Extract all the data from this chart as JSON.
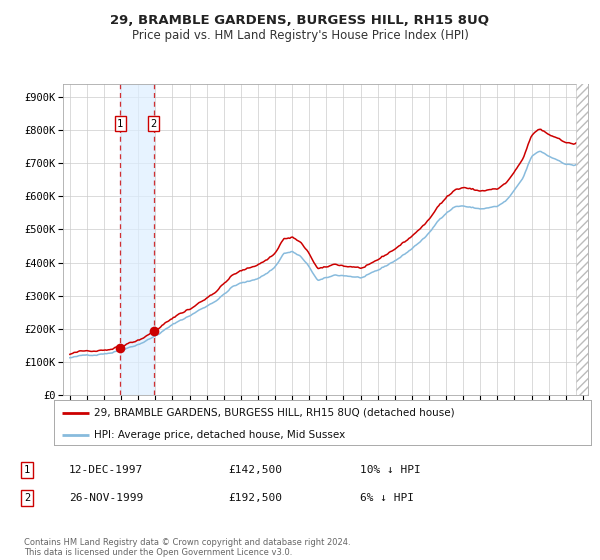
{
  "title": "29, BRAMBLE GARDENS, BURGESS HILL, RH15 8UQ",
  "subtitle": "Price paid vs. HM Land Registry's House Price Index (HPI)",
  "legend_red": "29, BRAMBLE GARDENS, BURGESS HILL, RH15 8UQ (detached house)",
  "legend_blue": "HPI: Average price, detached house, Mid Sussex",
  "transaction1_date": "12-DEC-1997",
  "transaction1_price": "£142,500",
  "transaction1_pct": "10% ↓ HPI",
  "transaction2_date": "26-NOV-1999",
  "transaction2_price": "£192,500",
  "transaction2_pct": "6% ↓ HPI",
  "footnote": "Contains HM Land Registry data © Crown copyright and database right 2024.\nThis data is licensed under the Open Government Licence v3.0.",
  "ytick_labels": [
    "£0",
    "£100K",
    "£200K",
    "£300K",
    "£400K",
    "£500K",
    "£600K",
    "£700K",
    "£800K",
    "£900K"
  ],
  "yticks": [
    0,
    100000,
    200000,
    300000,
    400000,
    500000,
    600000,
    700000,
    800000,
    900000
  ],
  "red_color": "#cc0000",
  "blue_color": "#88bbdd",
  "span_color": "#ddeeff",
  "background_color": "#ffffff",
  "grid_color": "#cccccc",
  "transaction1_x": 1997.95,
  "transaction1_y": 142500,
  "transaction2_x": 1999.9,
  "transaction2_y": 192500,
  "xmin": 1995.0,
  "xmax": 2025.2
}
